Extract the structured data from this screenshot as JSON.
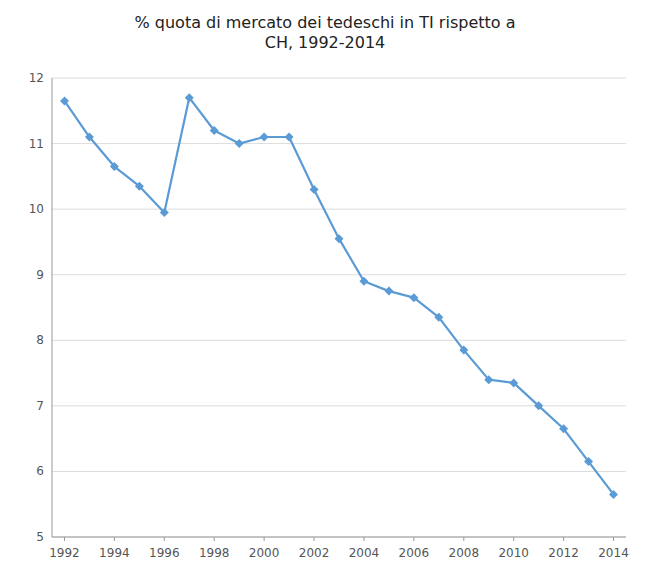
{
  "chart_data": {
    "type": "line",
    "title": "% quota di mercato dei tedeschi in TI rispetto a\nCH, 1992-2014",
    "x": [
      1992,
      1993,
      1994,
      1995,
      1996,
      1997,
      1998,
      1999,
      2000,
      2001,
      2002,
      2003,
      2004,
      2005,
      2006,
      2007,
      2008,
      2009,
      2010,
      2011,
      2012,
      2013,
      2014
    ],
    "values": [
      11.65,
      11.1,
      10.65,
      10.35,
      9.95,
      11.7,
      11.2,
      11.0,
      11.1,
      11.1,
      10.3,
      9.55,
      8.9,
      8.75,
      8.65,
      8.35,
      7.85,
      7.4,
      7.35,
      7.0,
      6.65,
      6.15,
      5.65
    ],
    "xlim": [
      1991.5,
      2014.5
    ],
    "ylim": [
      5,
      12
    ],
    "xticks": [
      1992,
      1994,
      1996,
      1998,
      2000,
      2002,
      2004,
      2006,
      2008,
      2010,
      2012,
      2014
    ],
    "yticks": [
      5,
      6,
      7,
      8,
      9,
      10,
      11,
      12
    ],
    "color": "#5B9BD5",
    "marker": "diamond",
    "grid": true
  }
}
